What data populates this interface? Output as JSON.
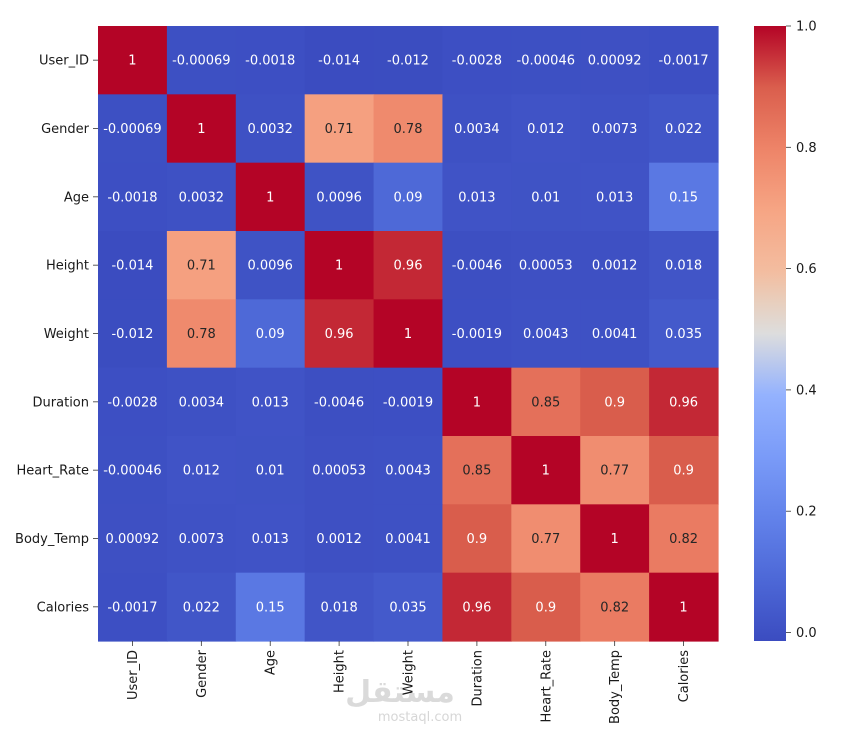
{
  "chart_data": {
    "type": "heatmap",
    "title": "",
    "xlabel": "",
    "ylabel": "",
    "x_labels": [
      "User_ID",
      "Gender",
      "Age",
      "Height",
      "Weight",
      "Duration",
      "Heart_Rate",
      "Body_Temp",
      "Calories"
    ],
    "y_labels": [
      "User_ID",
      "Gender",
      "Age",
      "Height",
      "Weight",
      "Duration",
      "Heart_Rate",
      "Body_Temp",
      "Calories"
    ],
    "values": [
      [
        1,
        -0.00069,
        -0.0018,
        -0.014,
        -0.012,
        -0.0028,
        -0.00046,
        0.00092,
        -0.0017
      ],
      [
        -0.00069,
        1,
        0.0032,
        0.71,
        0.78,
        0.0034,
        0.012,
        0.0073,
        0.022
      ],
      [
        -0.0018,
        0.0032,
        1,
        0.0096,
        0.09,
        0.013,
        0.01,
        0.013,
        0.15
      ],
      [
        -0.014,
        0.71,
        0.0096,
        1,
        0.96,
        -0.0046,
        0.00053,
        0.0012,
        0.018
      ],
      [
        -0.012,
        0.78,
        0.09,
        0.96,
        1,
        -0.0019,
        0.0043,
        0.0041,
        0.035
      ],
      [
        -0.0028,
        0.0034,
        0.013,
        -0.0046,
        -0.0019,
        1,
        0.85,
        0.9,
        0.96
      ],
      [
        -0.00046,
        0.012,
        0.01,
        0.00053,
        0.0043,
        0.85,
        1,
        0.77,
        0.9
      ],
      [
        0.00092,
        0.0073,
        0.013,
        0.0012,
        0.0041,
        0.9,
        0.77,
        1,
        0.82
      ],
      [
        -0.0017,
        0.022,
        0.15,
        0.018,
        0.035,
        0.96,
        0.9,
        0.82,
        1
      ]
    ],
    "annotations": [
      [
        "1",
        "-0.00069",
        "-0.0018",
        "-0.014",
        "-0.012",
        "-0.0028",
        "-0.00046",
        "0.00092",
        "-0.0017"
      ],
      [
        "-0.00069",
        "1",
        "0.0032",
        "0.71",
        "0.78",
        "0.0034",
        "0.012",
        "0.0073",
        "0.022"
      ],
      [
        "-0.0018",
        "0.0032",
        "1",
        "0.0096",
        "0.09",
        "0.013",
        "0.01",
        "0.013",
        "0.15"
      ],
      [
        "-0.014",
        "0.71",
        "0.0096",
        "1",
        "0.96",
        "-0.0046",
        "0.00053",
        "0.0012",
        "0.018"
      ],
      [
        "-0.012",
        "0.78",
        "0.09",
        "0.96",
        "1",
        "-0.0019",
        "0.0043",
        "0.0041",
        "0.035"
      ],
      [
        "-0.0028",
        "0.0034",
        "0.013",
        "-0.0046",
        "-0.0019",
        "1",
        "0.85",
        "0.9",
        "0.96"
      ],
      [
        "-0.00046",
        "0.012",
        "0.01",
        "0.00053",
        "0.0043",
        "0.85",
        "1",
        "0.77",
        "0.9"
      ],
      [
        "0.00092",
        "0.0073",
        "0.013",
        "0.0012",
        "0.0041",
        "0.9",
        "0.77",
        "1",
        "0.82"
      ],
      [
        "-0.0017",
        "0.022",
        "0.15",
        "0.018",
        "0.035",
        "0.96",
        "0.9",
        "0.82",
        "1"
      ]
    ],
    "colormap": "coolwarm",
    "vmin": -0.014,
    "vmax": 1,
    "colorbar_ticks": [
      0.0,
      0.2,
      0.4,
      0.6,
      0.8,
      1.0
    ],
    "colorbar_tick_labels": [
      "0.0",
      "0.2",
      "0.4",
      "0.6",
      "0.8",
      "1.0"
    ],
    "legend": "colorbar right"
  },
  "watermark": {
    "logo": "مستقل",
    "text": "mostaql.com"
  },
  "colors": {
    "text_dark": "#ffffff",
    "text_light": "#262626"
  }
}
